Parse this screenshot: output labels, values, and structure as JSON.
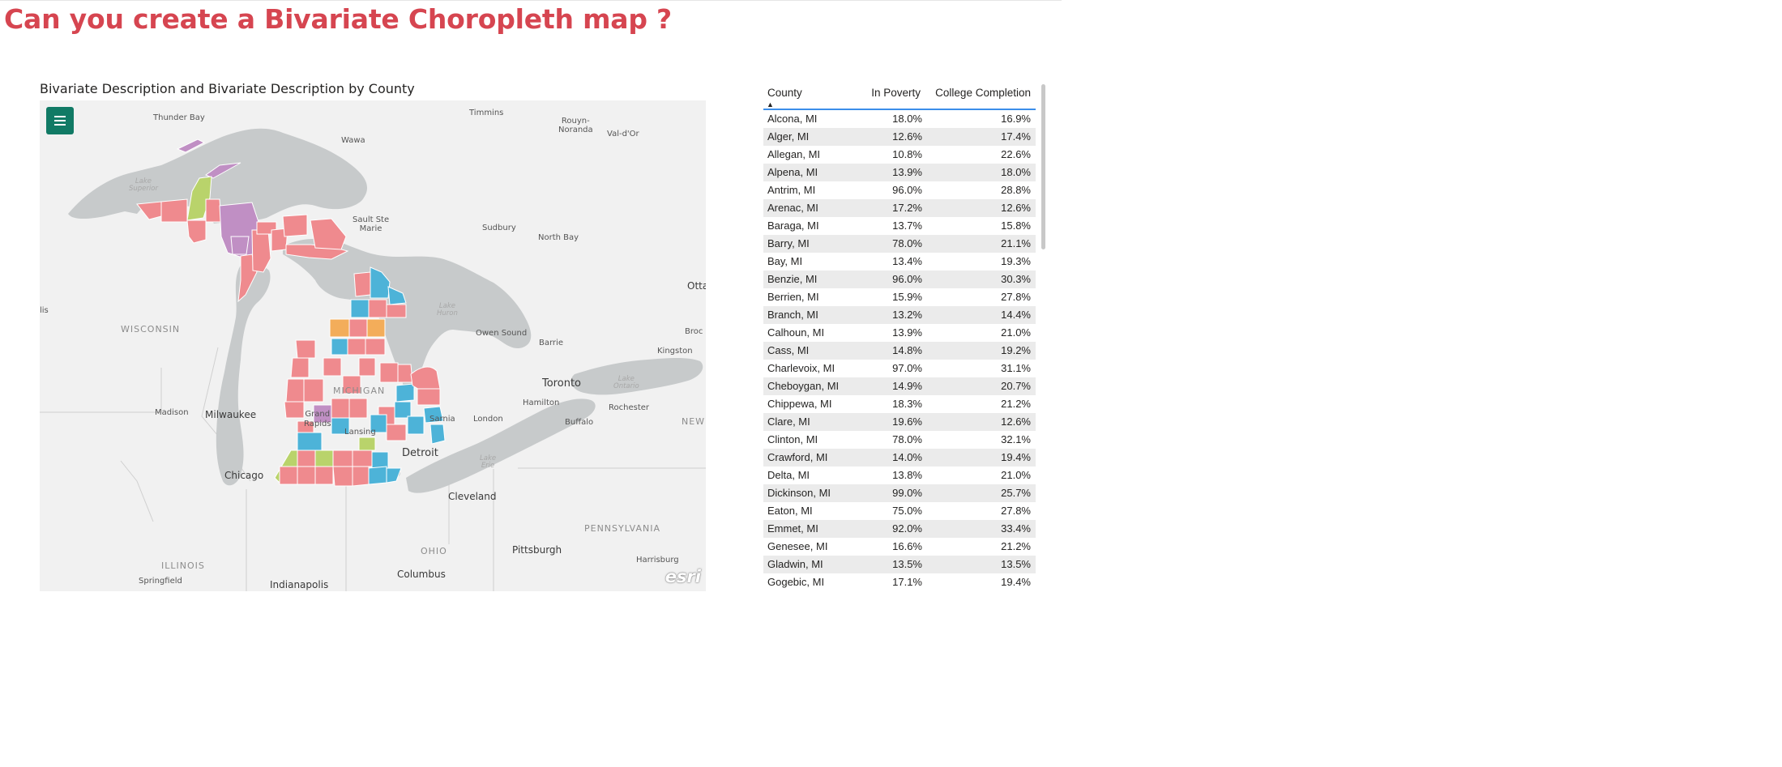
{
  "page": {
    "title": "Can you create a Bivariate Choropleth map ?"
  },
  "map": {
    "title": "Bivariate Description and Bivariate Description by County",
    "attribution": "esri",
    "colors": {
      "red": "#ef8a8e",
      "blue": "#4db3d8",
      "purple": "#c08fc4",
      "green": "#b9d36b",
      "orange": "#f3ad5a",
      "water": "#c7cacb",
      "land": "#f1f1f1"
    },
    "labels": {
      "thunder_bay": "Thunder Bay",
      "timmins": "Timmins",
      "rouyn": "Rouyn-\nNoranda",
      "valdor": "Val-d'Or",
      "wawa": "Wawa",
      "lake_superior": "Lake\nSuperior",
      "sault": "Sault Ste\nMarie",
      "sudbury": "Sudbury",
      "north_bay": "North Bay",
      "otta": "Otta",
      "lis": "lis",
      "wisconsin": "WISCONSIN",
      "lake_huron": "Lake\nHuron",
      "owen_sound": "Owen Sound",
      "barrie": "Barrie",
      "broc": "Broc",
      "kingston": "Kingston",
      "toronto": "Toronto",
      "lake_ontario": "Lake\nOntario",
      "michigan": "MICHIGAN",
      "hamilton": "Hamilton",
      "rochester": "Rochester",
      "madison": "Madison",
      "milwaukee": "Milwaukee",
      "grand_rapids": "Grand\nRapids",
      "sarnia": "Sarnia",
      "london": "London",
      "buffalo": "Buffalo",
      "new": "NEW",
      "lansing": "Lansing",
      "chicago": "Chicago",
      "detroit": "Detroit",
      "lake_erie": "Lake\nErie",
      "cleveland": "Cleveland",
      "pennsylvania": "PENNSYLVANIA",
      "ohio": "OHIO",
      "pittsburgh": "Pittsburgh",
      "illinois": "ILLINOIS",
      "harrisburg": "Harrisburg",
      "columbus": "Columbus",
      "springfield": "Springfield",
      "indianapolis": "Indianapolis"
    }
  },
  "table": {
    "columns": [
      "County",
      "In Poverty",
      "College Completion"
    ],
    "rows": [
      [
        "Alcona, MI",
        "18.0%",
        "16.9%"
      ],
      [
        "Alger, MI",
        "12.6%",
        "17.4%"
      ],
      [
        "Allegan, MI",
        "10.8%",
        "22.6%"
      ],
      [
        "Alpena, MI",
        "13.9%",
        "18.0%"
      ],
      [
        "Antrim, MI",
        "96.0%",
        "28.8%"
      ],
      [
        "Arenac, MI",
        "17.2%",
        "12.6%"
      ],
      [
        "Baraga, MI",
        "13.7%",
        "15.8%"
      ],
      [
        "Barry, MI",
        "78.0%",
        "21.1%"
      ],
      [
        "Bay, MI",
        "13.4%",
        "19.3%"
      ],
      [
        "Benzie, MI",
        "96.0%",
        "30.3%"
      ],
      [
        "Berrien, MI",
        "15.9%",
        "27.8%"
      ],
      [
        "Branch, MI",
        "13.2%",
        "14.4%"
      ],
      [
        "Calhoun, MI",
        "13.9%",
        "21.0%"
      ],
      [
        "Cass, MI",
        "14.8%",
        "19.2%"
      ],
      [
        "Charlevoix, MI",
        "97.0%",
        "31.1%"
      ],
      [
        "Cheboygan, MI",
        "14.9%",
        "20.7%"
      ],
      [
        "Chippewa, MI",
        "18.3%",
        "21.2%"
      ],
      [
        "Clare, MI",
        "19.6%",
        "12.6%"
      ],
      [
        "Clinton, MI",
        "78.0%",
        "32.1%"
      ],
      [
        "Crawford, MI",
        "14.0%",
        "19.4%"
      ],
      [
        "Delta, MI",
        "13.8%",
        "21.0%"
      ],
      [
        "Dickinson, MI",
        "99.0%",
        "25.7%"
      ],
      [
        "Eaton, MI",
        "75.0%",
        "27.8%"
      ],
      [
        "Emmet, MI",
        "92.0%",
        "33.4%"
      ],
      [
        "Genesee, MI",
        "16.6%",
        "21.2%"
      ],
      [
        "Gladwin, MI",
        "13.5%",
        "13.5%"
      ],
      [
        "Gogebic, MI",
        "17.1%",
        "19.4%"
      ]
    ]
  }
}
